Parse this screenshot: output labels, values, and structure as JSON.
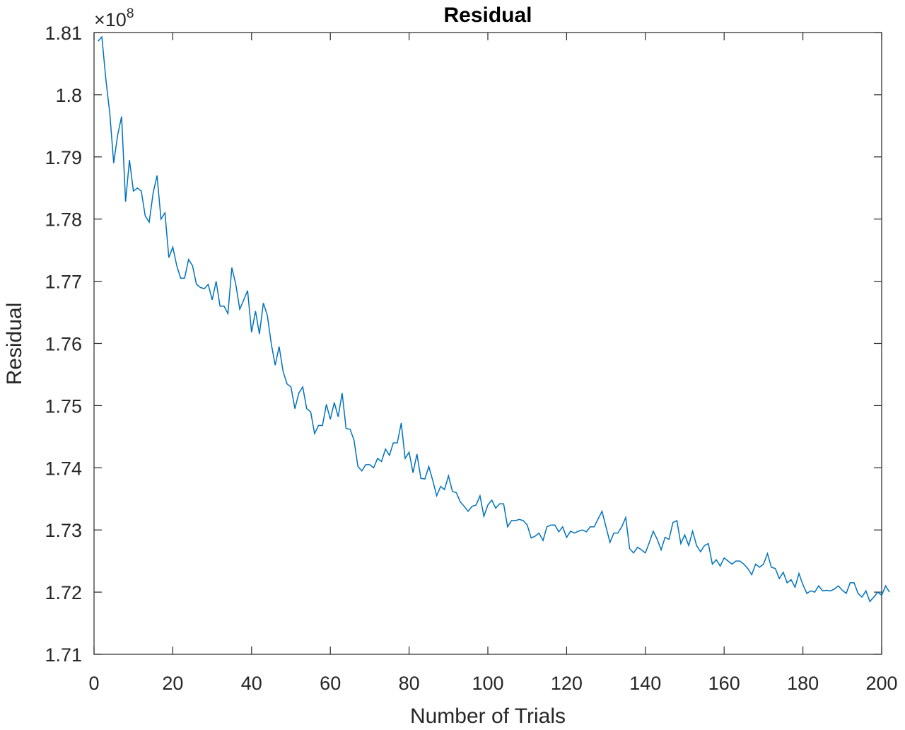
{
  "chart_data": {
    "type": "line",
    "title": "Residual",
    "xlabel": "Number of Trials",
    "ylabel": "Residual",
    "y_exponent": "8",
    "y_multiplier_prefix": "×10",
    "xlim": [
      0,
      200
    ],
    "ylim": [
      1.71,
      1.81
    ],
    "x_ticks": [
      0,
      20,
      40,
      60,
      80,
      100,
      120,
      140,
      160,
      180,
      200
    ],
    "x_tick_labels": [
      "0",
      "20",
      "40",
      "60",
      "80",
      "100",
      "120",
      "140",
      "160",
      "180",
      "200"
    ],
    "y_ticks": [
      1.71,
      1.72,
      1.73,
      1.74,
      1.75,
      1.76,
      1.77,
      1.78,
      1.79,
      1.8,
      1.81
    ],
    "y_tick_labels": [
      "1.71",
      "1.72",
      "1.73",
      "1.74",
      "1.75",
      "1.76",
      "1.77",
      "1.78",
      "1.79",
      "1.8",
      "1.81"
    ],
    "grid": false,
    "line_color": "#0072BD",
    "series": [
      {
        "values": [
          1.8086,
          1.8093,
          1.8025,
          1.797,
          1.789,
          1.7935,
          1.7965,
          1.7828,
          1.7895,
          1.7845,
          1.785,
          1.7845,
          1.7805,
          1.7795,
          1.7842,
          1.787,
          1.78,
          1.781,
          1.7738,
          1.7755,
          1.7725,
          1.7705,
          1.7705,
          1.7735,
          1.7725,
          1.7695,
          1.769,
          1.7688,
          1.7695,
          1.767,
          1.77,
          1.766,
          1.766,
          1.7648,
          1.7722,
          1.7695,
          1.7655,
          1.767,
          1.7685,
          1.7618,
          1.7652,
          1.7615,
          1.7665,
          1.7645,
          1.76,
          1.7565,
          1.7595,
          1.7555,
          1.7535,
          1.753,
          1.7495,
          1.752,
          1.753,
          1.7495,
          1.749,
          1.7455,
          1.7468,
          1.7468,
          1.7502,
          1.7478,
          1.7505,
          1.7482,
          1.752,
          1.7463,
          1.7462,
          1.7445,
          1.7402,
          1.7395,
          1.7405,
          1.7405,
          1.74,
          1.7415,
          1.741,
          1.743,
          1.742,
          1.744,
          1.744,
          1.7472,
          1.7415,
          1.7425,
          1.7392,
          1.7422,
          1.7383,
          1.7382,
          1.7402,
          1.738,
          1.7355,
          1.737,
          1.7365,
          1.7387,
          1.7362,
          1.736,
          1.7345,
          1.7338,
          1.733,
          1.7338,
          1.734,
          1.7355,
          1.7322,
          1.734,
          1.7348,
          1.7335,
          1.7342,
          1.7342,
          1.7305,
          1.7315,
          1.7315,
          1.7317,
          1.7315,
          1.7308,
          1.7287,
          1.729,
          1.7295,
          1.7283,
          1.7305,
          1.7308,
          1.7308,
          1.7297,
          1.7305,
          1.7288,
          1.7298,
          1.7295,
          1.7298,
          1.73,
          1.7297,
          1.7305,
          1.7305,
          1.7318,
          1.733,
          1.7305,
          1.728,
          1.7295,
          1.7295,
          1.7305,
          1.732,
          1.727,
          1.7263,
          1.7272,
          1.7268,
          1.7263,
          1.728,
          1.7298,
          1.7285,
          1.7268,
          1.7288,
          1.7285,
          1.7312,
          1.7315,
          1.7278,
          1.7292,
          1.7275,
          1.7298,
          1.7275,
          1.7265,
          1.7275,
          1.7278,
          1.7245,
          1.7252,
          1.7242,
          1.7255,
          1.725,
          1.7245,
          1.725,
          1.725,
          1.7245,
          1.7238,
          1.7228,
          1.7245,
          1.724,
          1.7245,
          1.7262,
          1.724,
          1.7238,
          1.7222,
          1.7232,
          1.7215,
          1.722,
          1.7208,
          1.723,
          1.7212,
          1.7198,
          1.7202,
          1.72,
          1.721,
          1.7202,
          1.7203,
          1.7202,
          1.7205,
          1.721,
          1.7203,
          1.7198,
          1.7215,
          1.7215,
          1.7198,
          1.7192,
          1.7202,
          1.7185,
          1.7192,
          1.72,
          1.7195,
          1.721,
          1.72
        ]
      }
    ]
  }
}
